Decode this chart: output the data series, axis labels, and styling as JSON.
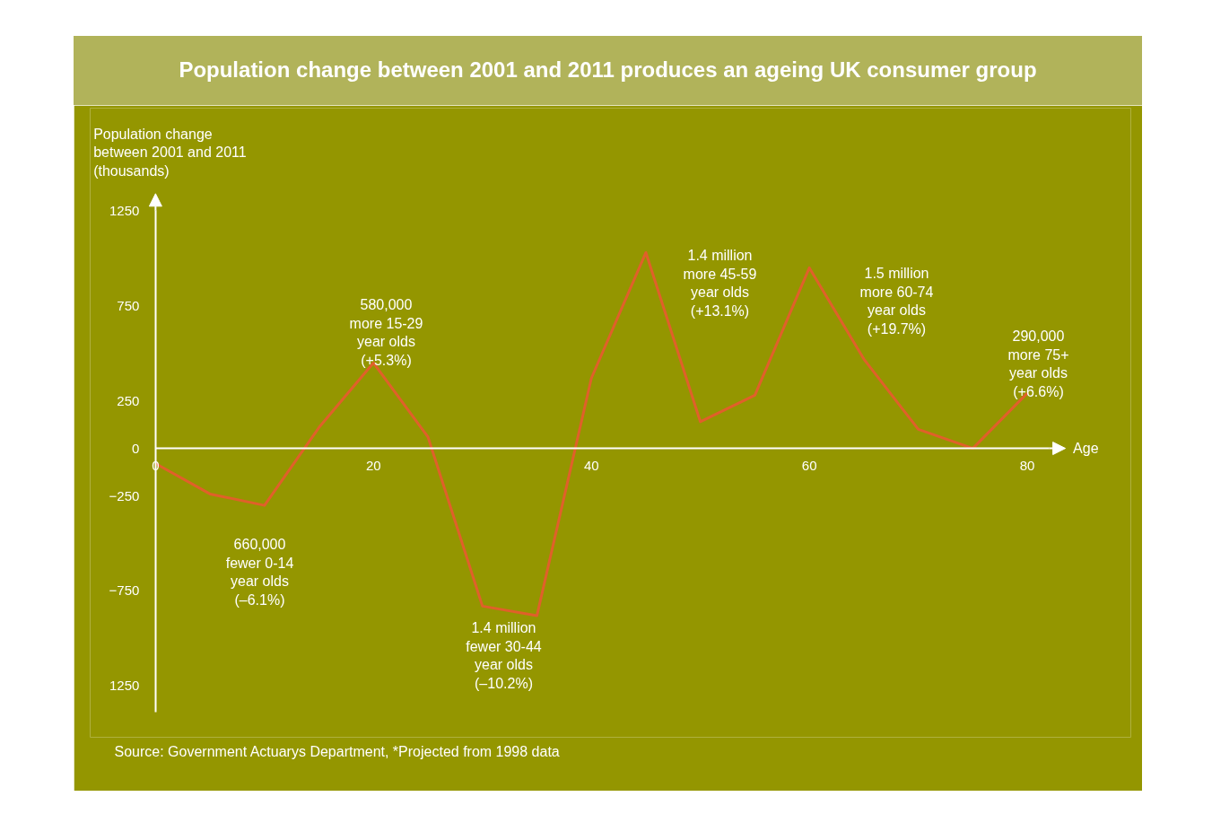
{
  "chart_data": {
    "type": "line",
    "title": "Population change between 2001 and 2011 produces an ageing UK consumer group",
    "xlabel": "Age",
    "ylabel": "Population change\nbetween 2001 and 2011\n(thousands)",
    "x": [
      0,
      5,
      10,
      15,
      20,
      25,
      30,
      35,
      40,
      45,
      50,
      55,
      60,
      65,
      70,
      75,
      80
    ],
    "series": [
      {
        "color": "#e0602a",
        "values": [
          -80,
          -240,
          -300,
          110,
          450,
          60,
          -830,
          -880,
          370,
          1030,
          140,
          280,
          950,
          470,
          100,
          0,
          290
        ]
      }
    ],
    "xlim": [
      -6,
      89.5
    ],
    "ylim": [
      -1520,
      1790
    ],
    "xticks": [
      0,
      20,
      40,
      60,
      80
    ],
    "yticks": [
      1250,
      750,
      250,
      0,
      -250,
      -750,
      {
        "value": -1250,
        "label": "1250"
      }
    ],
    "annotations": [
      "580,000\nmore 15-29\nyear olds\n(+5.3%)",
      "1.4 million\nmore 45-59\nyear olds\n(+13.1%)",
      "1.5 million\nmore 60-74\nyear olds\n(+19.7%)",
      "290,000\nmore 75+\nyear olds\n(+6.6%)",
      "660,000\nfewer 0-14\nyear olds\n(–6.1%)",
      "1.4 million\nfewer 30-44\nyear olds\n(–10.2%)",
      "Source: Government Actuarys Department,  *Projected from 1998 data"
    ]
  }
}
